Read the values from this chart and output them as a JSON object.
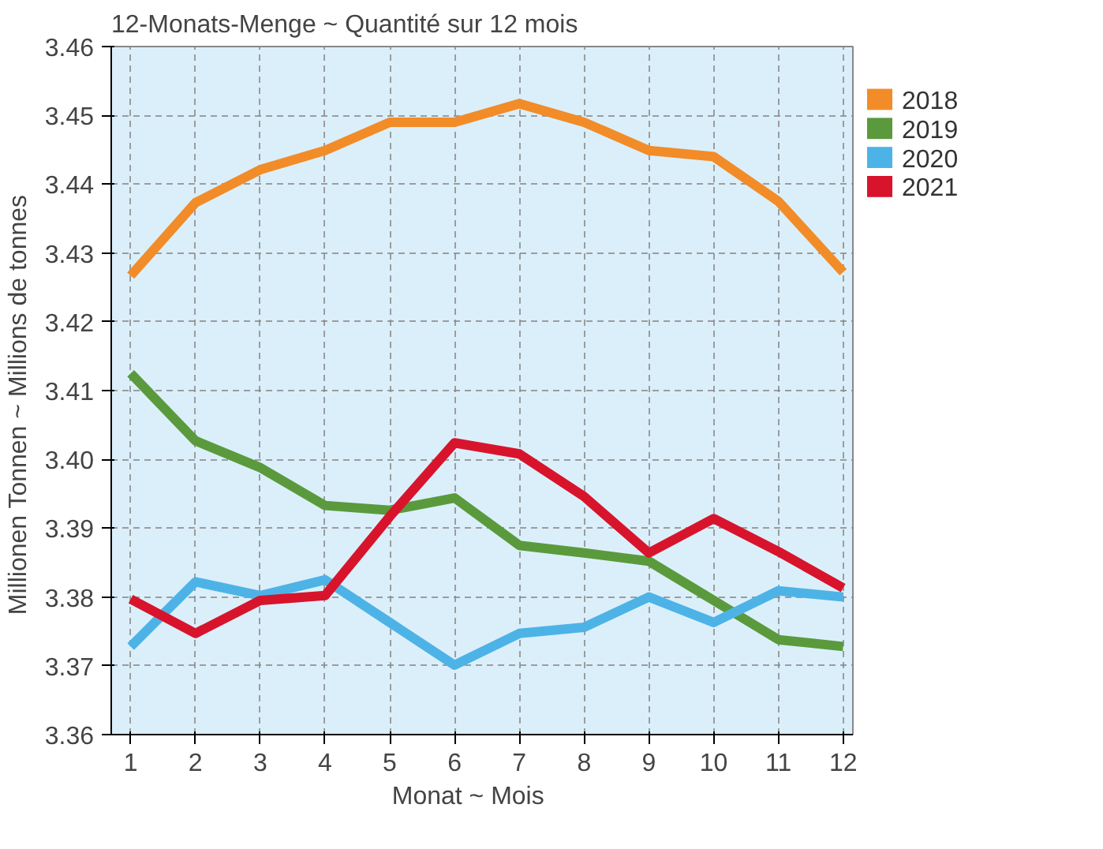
{
  "chart_data": {
    "type": "line",
    "title": "12-Monats-Menge   ~   Quantité sur 12 mois",
    "xlabel": "Monat   ~   Mois",
    "ylabel": "Millionen Tonnen   ~   Millions de tonnes",
    "x": [
      1,
      2,
      3,
      4,
      5,
      6,
      7,
      8,
      9,
      10,
      11,
      12
    ],
    "xlim": [
      0.7,
      12.15
    ],
    "xticks": [
      1,
      2,
      3,
      4,
      5,
      6,
      7,
      8,
      9,
      10,
      11,
      12
    ],
    "ylim": [
      3.36,
      3.46
    ],
    "yticks": [
      3.36,
      3.37,
      3.38,
      3.39,
      {
        "value": 3.4,
        "label": "3.40"
      },
      3.41,
      3.42,
      3.43,
      3.44,
      3.45,
      3.46
    ],
    "grid": true,
    "legend": "top right",
    "marker": "none",
    "line_style": "solid",
    "series": [
      {
        "name": "2018",
        "color": "#f28c28",
        "values": [
          3.4267,
          3.4373,
          3.4421,
          3.4449,
          3.449,
          3.449,
          3.4517,
          3.449,
          3.4449,
          3.444,
          3.4375,
          3.4272
        ]
      },
      {
        "name": "2019",
        "color": "#5a9a3c",
        "values": [
          3.4125,
          3.4027,
          3.3988,
          3.3933,
          3.3926,
          3.3944,
          3.3875,
          3.3864,
          3.3852,
          3.3795,
          3.3738,
          3.3728
        ]
      },
      {
        "name": "2020",
        "color": "#4db3e6",
        "values": [
          3.3728,
          3.3822,
          3.3802,
          3.3825,
          3.3763,
          3.3701,
          3.3747,
          3.3756,
          3.38,
          3.3763,
          3.3809,
          3.38
        ]
      },
      {
        "name": "2021",
        "color": "#d7142c",
        "values": [
          3.3797,
          3.3747,
          3.3795,
          3.3802,
          3.3917,
          3.4024,
          3.4008,
          3.3946,
          3.3864,
          3.3914,
          3.3866,
          3.3813
        ]
      }
    ]
  }
}
